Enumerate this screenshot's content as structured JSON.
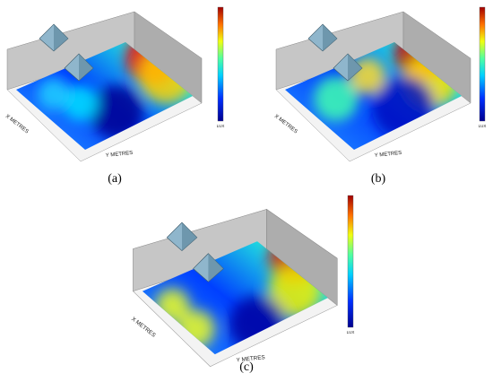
{
  "panels": [
    {
      "label": "(a)",
      "x_axis": "X METRES",
      "y_axis": "Y METRES",
      "colorbar_unit": "LUX"
    },
    {
      "label": "(b)",
      "x_axis": "X METRES",
      "y_axis": "Y METRES",
      "colorbar_unit": "LUX"
    },
    {
      "label": "(c)",
      "x_axis": "X METRES",
      "y_axis": "Y METRES",
      "colorbar_unit": "LUX"
    }
  ]
}
